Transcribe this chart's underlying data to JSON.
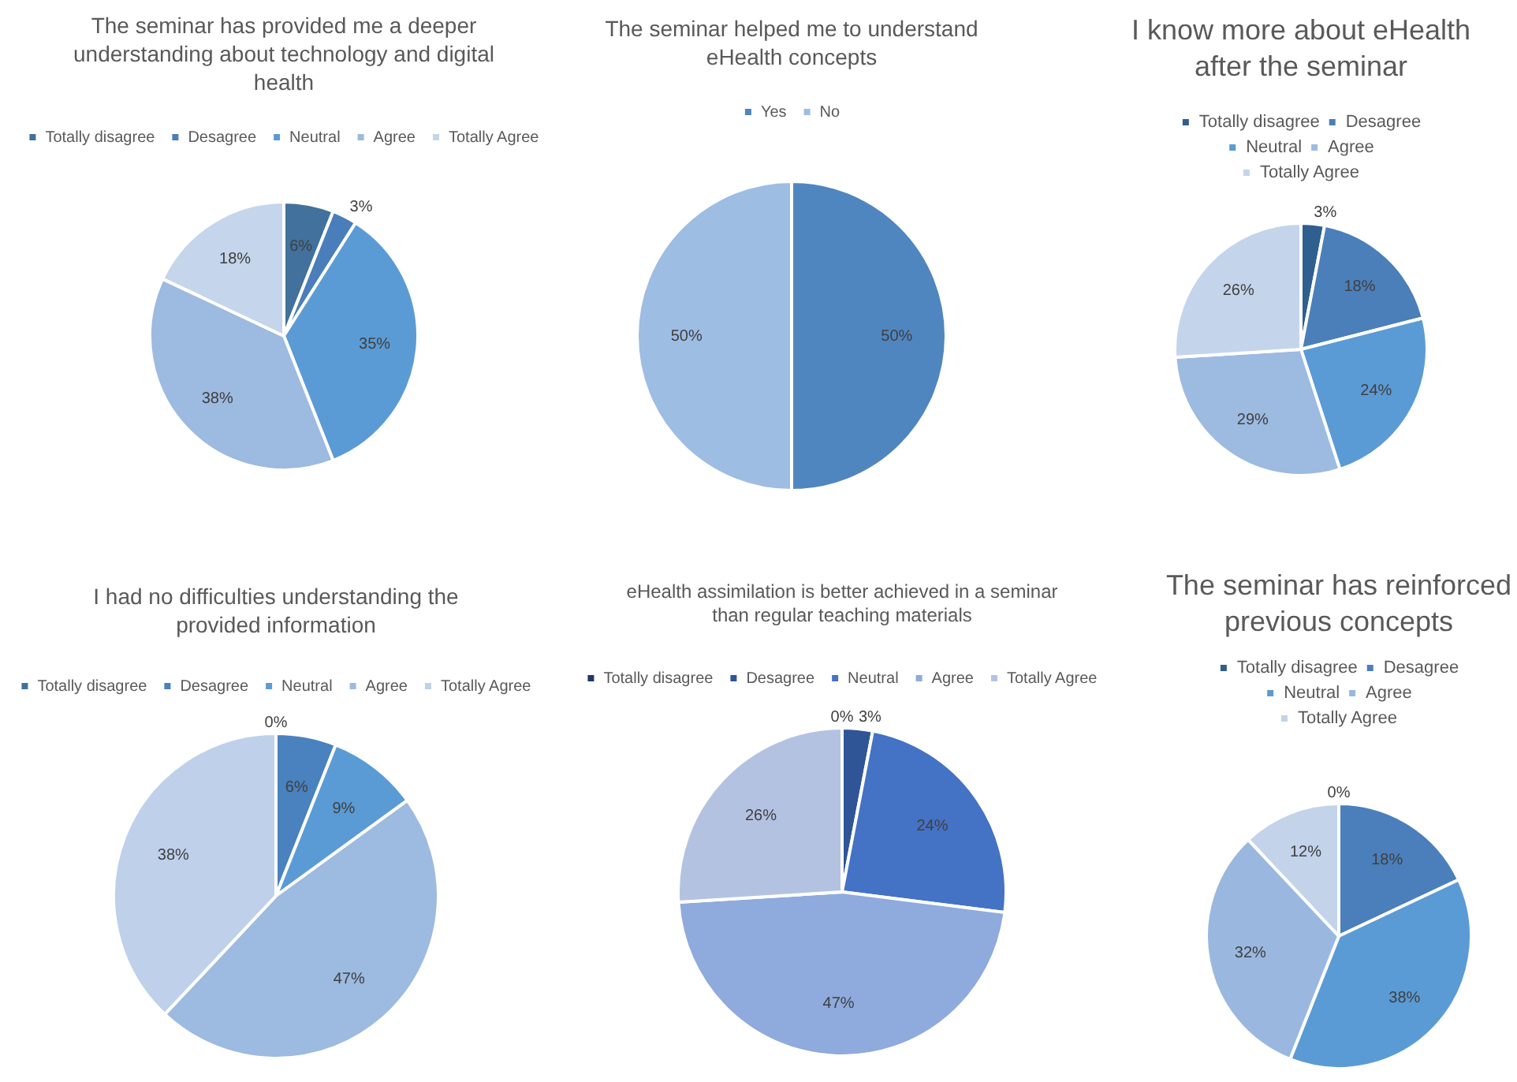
{
  "chart_data": [
    {
      "type": "pie",
      "title": "The seminar has provided me a deeper understanding about technology and digital health",
      "categories": [
        "Totally disagree",
        "Desagree",
        "Neutral",
        "Agree",
        "Totally Agree"
      ],
      "values": [
        6,
        3,
        35,
        38,
        18
      ],
      "colors": [
        "#41719c",
        "#4a7ebb",
        "#5b9bd5",
        "#9dbae0",
        "#c5d5eb"
      ],
      "value_labels": [
        "6%",
        "3%",
        "35%",
        "38%",
        "18%"
      ],
      "legend": "top"
    },
    {
      "type": "pie",
      "title": "The seminar helped me to understand eHealth concepts",
      "categories": [
        "Yes",
        "No"
      ],
      "values": [
        50,
        50
      ],
      "colors": [
        "#4f86c0",
        "#9dbde3"
      ],
      "value_labels": [
        "50%",
        "50%"
      ],
      "legend": "top"
    },
    {
      "type": "pie",
      "title": "I know more about eHealth after the seminar",
      "categories": [
        "Totally disagree",
        "Desagree",
        "Neutral",
        "Agree",
        "Totally Agree"
      ],
      "values": [
        3,
        18,
        24,
        29,
        26
      ],
      "colors": [
        "#2e5f8f",
        "#4a7fb9",
        "#5b9bd5",
        "#9dbae0",
        "#c4d4eb"
      ],
      "value_labels": [
        "3%",
        "18%",
        "24%",
        "29%",
        "26%"
      ],
      "legend": "top"
    },
    {
      "type": "pie",
      "title": "I had no difficulties understanding the provided information",
      "categories": [
        "Totally disagree",
        "Desagree",
        "Neutral",
        "Agree",
        "Totally Agree"
      ],
      "values": [
        0,
        6,
        9,
        47,
        38
      ],
      "colors": [
        "#41719c",
        "#4a81bf",
        "#5b9bd5",
        "#9dbae0",
        "#bfd0ea"
      ],
      "value_labels": [
        "0%",
        "6%",
        "9%",
        "47%",
        "38%"
      ],
      "legend": "top"
    },
    {
      "type": "pie",
      "title": "eHealth assimilation is better achieved in a seminar than regular teaching materials",
      "categories": [
        "Totally disagree",
        "Desagree",
        "Neutral",
        "Agree",
        "Totally Agree"
      ],
      "values": [
        0,
        3,
        24,
        47,
        26
      ],
      "colors": [
        "#203864",
        "#2f5597",
        "#4472c4",
        "#8faadc",
        "#b4c2e2"
      ],
      "value_labels": [
        "0%",
        "3%",
        "24%",
        "47%",
        "26%"
      ],
      "legend": "top"
    },
    {
      "type": "pie",
      "title": "The seminar has reinforced previous concepts",
      "categories": [
        "Totally disagree",
        "Desagree",
        "Neutral",
        "Agree",
        "Totally Agree"
      ],
      "values": [
        0,
        18,
        38,
        32,
        12
      ],
      "colors": [
        "#2e5d8e",
        "#4a7fbb",
        "#5b9bd5",
        "#9ab8df",
        "#c2d3ea"
      ],
      "value_labels": [
        "0%",
        "18%",
        "38%",
        "32%",
        "12%"
      ],
      "legend": "top"
    }
  ]
}
